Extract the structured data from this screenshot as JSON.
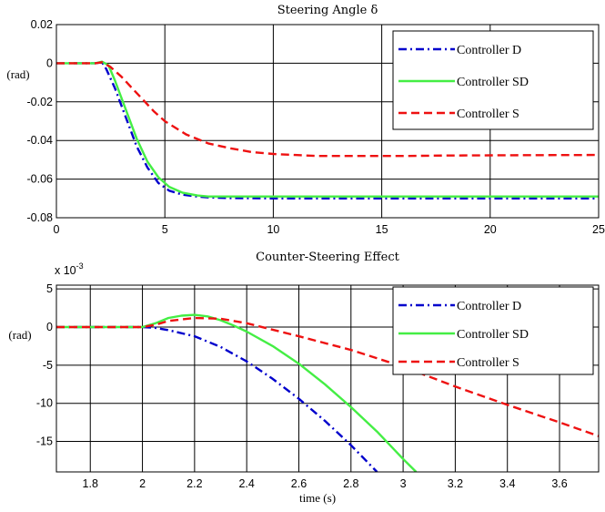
{
  "chart_data": [
    {
      "type": "line",
      "title": "Steering Angle δ",
      "xlabel": "",
      "ylabel": "(rad)",
      "xlim": [
        0,
        25
      ],
      "ylim": [
        -0.08,
        0.02
      ],
      "xticks": [
        0,
        5,
        10,
        15,
        20,
        25
      ],
      "yticks": [
        0.02,
        0,
        -0.02,
        -0.04,
        -0.06,
        -0.08
      ],
      "xtick_labels": [
        "0",
        "5",
        "10",
        "15",
        "20",
        "25"
      ],
      "ytick_labels": [
        "0.02",
        "0",
        "-0.02",
        "-0.04",
        "-0.06",
        "-0.08"
      ],
      "grid": true,
      "legend_position": "top-right",
      "series": [
        {
          "name": "Controller D",
          "color": "#0000cc",
          "style": "dashdot",
          "x": [
            0,
            1.8,
            2.1,
            2.3,
            2.7,
            3.2,
            3.7,
            4.2,
            4.7,
            5.2,
            5.8,
            6.5,
            7,
            8,
            10,
            12,
            15,
            20,
            25
          ],
          "y": [
            0,
            0,
            0.0005,
            -0.003,
            -0.013,
            -0.028,
            -0.043,
            -0.054,
            -0.062,
            -0.066,
            -0.068,
            -0.069,
            -0.0695,
            -0.0698,
            -0.07,
            -0.07,
            -0.07,
            -0.07,
            -0.07
          ]
        },
        {
          "name": "Controller SD",
          "color": "#44ee44",
          "style": "solid",
          "x": [
            0,
            1.8,
            2.1,
            2.4,
            2.7,
            3.2,
            3.7,
            4.2,
            4.7,
            5.2,
            5.8,
            6.5,
            7,
            8,
            10,
            12,
            15,
            20,
            25
          ],
          "y": [
            0,
            0,
            0.0008,
            -0.001,
            -0.009,
            -0.024,
            -0.039,
            -0.051,
            -0.059,
            -0.064,
            -0.067,
            -0.0685,
            -0.069,
            -0.069,
            -0.069,
            -0.069,
            -0.069,
            -0.069,
            -0.069
          ]
        },
        {
          "name": "Controller S",
          "color": "#ee1111",
          "style": "dashed",
          "x": [
            0,
            1.8,
            2.1,
            2.5,
            3,
            3.5,
            4,
            4.5,
            5,
            6,
            7,
            8,
            9,
            10,
            11,
            12,
            14,
            16,
            18,
            20,
            22,
            25
          ],
          "y": [
            0,
            0,
            0.0005,
            -0.002,
            -0.007,
            -0.013,
            -0.019,
            -0.025,
            -0.03,
            -0.037,
            -0.0415,
            -0.044,
            -0.046,
            -0.047,
            -0.0475,
            -0.048,
            -0.048,
            -0.048,
            -0.0478,
            -0.0477,
            -0.0476,
            -0.0475
          ]
        }
      ]
    },
    {
      "type": "line",
      "title": "Counter-Steering Effect",
      "xlabel": "time (s)",
      "ylabel": "(rad)",
      "y_multiplier": "x 10",
      "y_exponent": "-3",
      "xlim": [
        1.67,
        3.75
      ],
      "ylim": [
        -19,
        5.5
      ],
      "xticks": [
        1.8,
        2,
        2.2,
        2.4,
        2.6,
        2.8,
        3,
        3.2,
        3.4,
        3.6
      ],
      "yticks": [
        5,
        0,
        -5,
        -10,
        -15
      ],
      "xtick_labels": [
        "1.8",
        "2",
        "2.2",
        "2.4",
        "2.6",
        "2.8",
        "3",
        "3.2",
        "3.4",
        "3.6"
      ],
      "ytick_labels": [
        "5",
        "0",
        "-5",
        "-10",
        "-15"
      ],
      "grid": true,
      "legend_position": "top-right",
      "series": [
        {
          "name": "Controller D",
          "color": "#0000cc",
          "style": "dashdot",
          "x": [
            1.67,
            2.0,
            2.05,
            2.1,
            2.2,
            2.3,
            2.4,
            2.5,
            2.6,
            2.7,
            2.8,
            2.9
          ],
          "y": [
            0,
            0,
            -0.1,
            -0.4,
            -1.2,
            -2.6,
            -4.5,
            -6.8,
            -9.4,
            -12.3,
            -15.5,
            -19
          ]
        },
        {
          "name": "Controller SD",
          "color": "#44ee44",
          "style": "solid",
          "x": [
            1.67,
            2.0,
            2.05,
            2.1,
            2.15,
            2.2,
            2.25,
            2.3,
            2.35,
            2.4,
            2.5,
            2.6,
            2.7,
            2.8,
            2.9,
            3.0,
            3.05
          ],
          "y": [
            0,
            0,
            0.5,
            1.2,
            1.5,
            1.6,
            1.4,
            0.9,
            0.2,
            -0.6,
            -2.5,
            -4.8,
            -7.5,
            -10.5,
            -13.7,
            -17.3,
            -19
          ]
        },
        {
          "name": "Controller S",
          "color": "#ee1111",
          "style": "dashed",
          "x": [
            1.67,
            2.0,
            2.05,
            2.1,
            2.2,
            2.3,
            2.4,
            2.6,
            2.8,
            3.0,
            3.2,
            3.4,
            3.6,
            3.75
          ],
          "y": [
            0,
            0,
            0.3,
            0.8,
            1.2,
            1.1,
            0.5,
            -1.2,
            -3.0,
            -5.2,
            -7.8,
            -10.2,
            -12.5,
            -14.3
          ]
        }
      ]
    }
  ]
}
